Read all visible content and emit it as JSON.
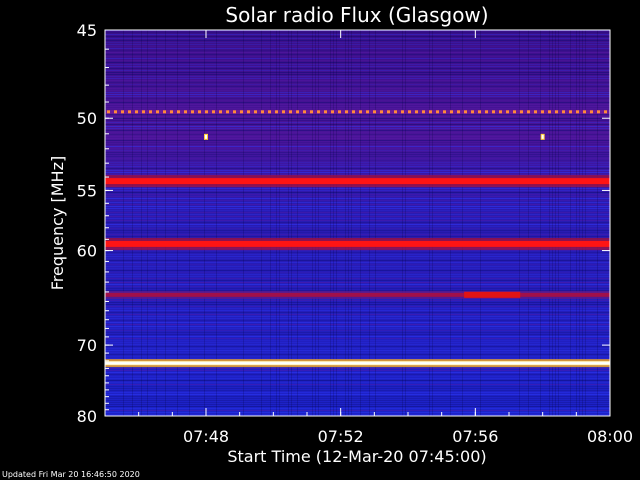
{
  "chart_data": {
    "type": "heatmap",
    "title": "Solar radio Flux (Glasgow)",
    "xlabel": "Start Time (12-Mar-20 07:45:00)",
    "ylabel": "Frequency [MHz]",
    "x_ticks": [
      "07:48",
      "07:52",
      "07:56",
      "08:00"
    ],
    "x_tick_minutes": [
      3,
      7,
      11,
      15
    ],
    "xlim_minutes": [
      0,
      15
    ],
    "y_ticks": [
      45,
      50,
      55,
      60,
      70,
      80
    ],
    "ylim": [
      45,
      80
    ],
    "y_scale": "reciprocal",
    "colormap": [
      "#000000",
      "#1a1ab0",
      "#3333ff",
      "#8020b0",
      "#ff1a1a",
      "#ffcc33",
      "#ffffff"
    ],
    "emission_bands": [
      {
        "freq_mhz": 49.6,
        "intensity": "high",
        "pattern": "dotted"
      },
      {
        "freq_mhz": 54.3,
        "intensity": "high"
      },
      {
        "freq_mhz": 59.4,
        "intensity": "high"
      },
      {
        "freq_mhz": 64.3,
        "intensity": "medium"
      },
      {
        "freq_mhz": 72.3,
        "intensity": "saturated"
      }
    ],
    "bursts": [
      {
        "time": "07:48",
        "freq_mhz": 51.2
      },
      {
        "time": "07:58",
        "freq_mhz": 51.2
      },
      {
        "time_start": "07:55:40",
        "time_end": "07:57:20",
        "freq_mhz": 64.3
      }
    ]
  },
  "footer": {
    "updated": "Updated Fri Mar 20 16:46:50 2020"
  }
}
